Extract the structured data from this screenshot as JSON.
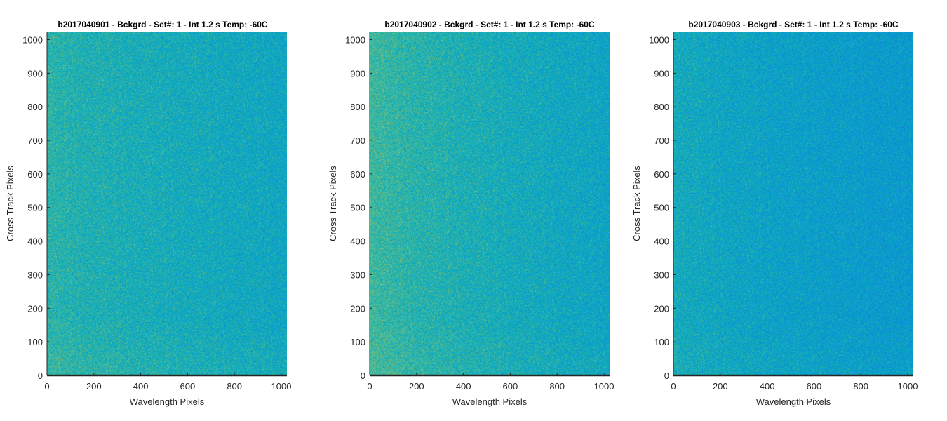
{
  "chart_data": [
    {
      "type": "heatmap",
      "title": "b2017040901 - Bckgrd - Set#: 1 - Int 1.2 s Temp: -60C",
      "xlabel": "Wavelength Pixels",
      "ylabel": "Cross Track Pixels",
      "xlim": [
        0,
        1024
      ],
      "ylim": [
        0,
        1024
      ],
      "xticks": [
        0,
        200,
        400,
        600,
        800,
        1000
      ],
      "yticks": [
        0,
        100,
        200,
        300,
        400,
        500,
        600,
        700,
        800,
        900,
        1000
      ],
      "colormap": "parula",
      "field": {
        "left_level": 0.58,
        "right_level": 0.5,
        "bottom_boost": 0.03,
        "noise": 0.12
      }
    },
    {
      "type": "heatmap",
      "title": "b2017040902 - Bckgrd - Set#: 1 - Int 1.2 s Temp: -60C",
      "xlabel": "Wavelength Pixels",
      "ylabel": "Cross Track Pixels",
      "xlim": [
        0,
        1024
      ],
      "ylim": [
        0,
        1024
      ],
      "xticks": [
        0,
        200,
        400,
        600,
        800,
        1000
      ],
      "yticks": [
        0,
        100,
        200,
        300,
        400,
        500,
        600,
        700,
        800,
        900,
        1000
      ],
      "colormap": "parula",
      "field": {
        "left_level": 0.62,
        "right_level": 0.49,
        "bottom_boost": 0.02,
        "noise": 0.12
      }
    },
    {
      "type": "heatmap",
      "title": "b2017040903 - Bckgrd - Set#: 1 - Int 1.2 s Temp: -60C",
      "xlabel": "Wavelength Pixels",
      "ylabel": "Cross Track Pixels",
      "xlim": [
        0,
        1024
      ],
      "ylim": [
        0,
        1024
      ],
      "xticks": [
        0,
        200,
        400,
        600,
        800,
        1000
      ],
      "yticks": [
        0,
        100,
        200,
        300,
        400,
        500,
        600,
        700,
        800,
        900,
        1000
      ],
      "colormap": "parula",
      "field": {
        "left_level": 0.53,
        "right_level": 0.44,
        "bottom_boost": 0.02,
        "noise": 0.12
      }
    }
  ]
}
